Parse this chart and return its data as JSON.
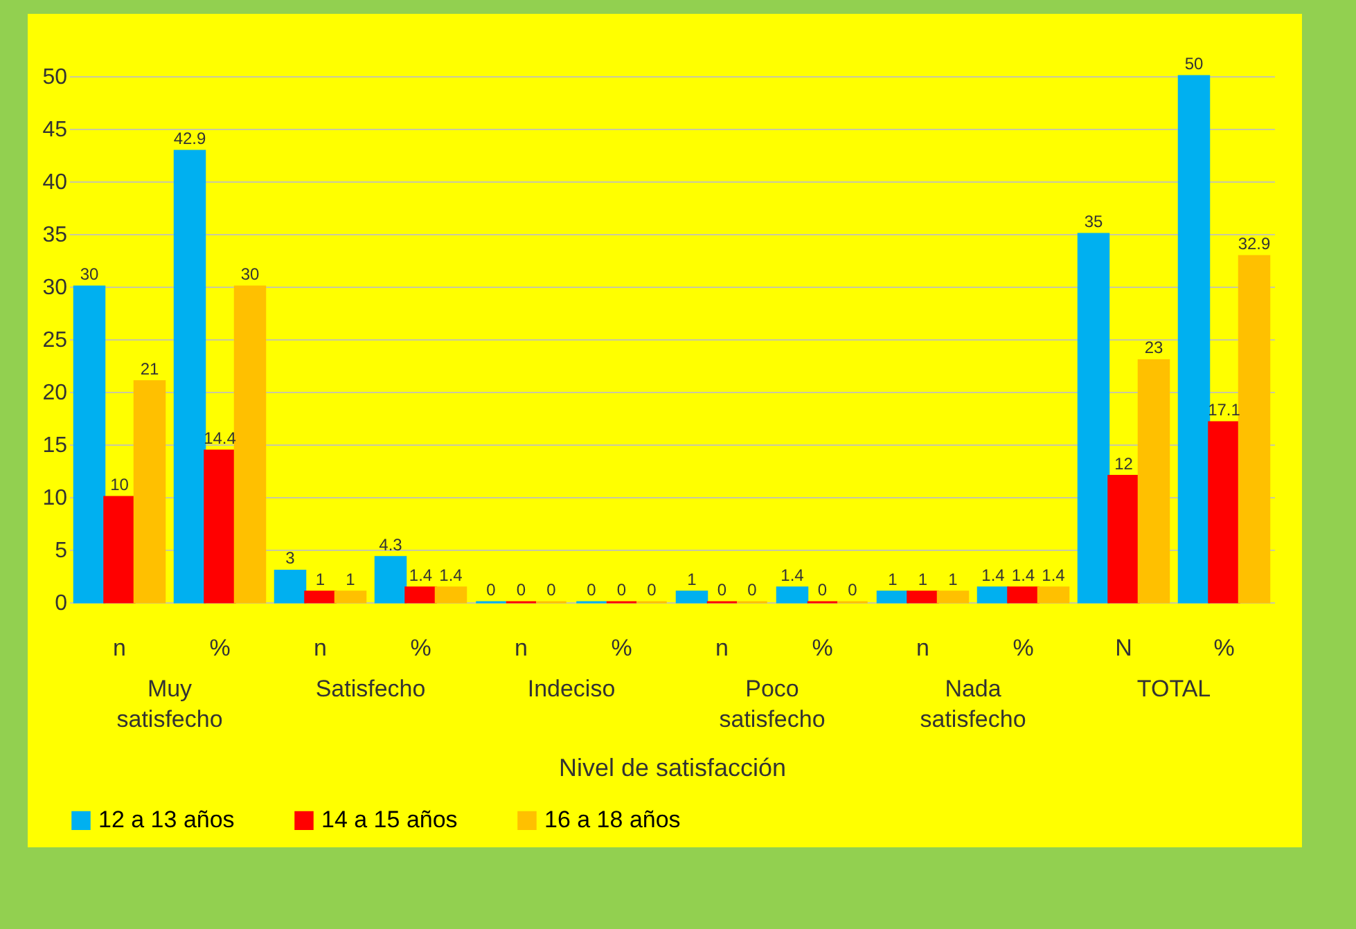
{
  "chart_data": {
    "type": "bar",
    "xlabel": "Nivel de satisfacción",
    "categories": [
      "n",
      "%",
      "n",
      "%",
      "n",
      "%",
      "n",
      "%",
      "n",
      "%",
      "N",
      "%"
    ],
    "series": [
      {
        "name": "12 a 13 años",
        "color": "#00b0f0",
        "values": [
          30,
          42.9,
          3,
          4.3,
          0,
          0,
          1,
          1.4,
          1,
          1.4,
          35,
          50
        ]
      },
      {
        "name": "14 a 15 años",
        "color": "#ff0000",
        "values": [
          10,
          14.4,
          1,
          1.4,
          0,
          0,
          0,
          0,
          1,
          1.4,
          12,
          17.1
        ]
      },
      {
        "name": "16 a 18 años",
        "color": "#ffc000",
        "values": [
          21,
          30,
          1,
          1.4,
          0,
          0,
          0,
          0,
          1,
          1.4,
          23,
          32.9
        ]
      }
    ],
    "annotations": [
      "Muy satisfecho",
      "Satisfecho",
      "Indeciso",
      "Poco satisfecho",
      "Nada satisfecho",
      "TOTAL"
    ],
    "ylim": [
      0,
      50
    ],
    "yticks": [
      0,
      5,
      10,
      15,
      20,
      25,
      30,
      35,
      40,
      45,
      50
    ],
    "grid": "y",
    "legend": "bottom",
    "data_labels": true
  }
}
